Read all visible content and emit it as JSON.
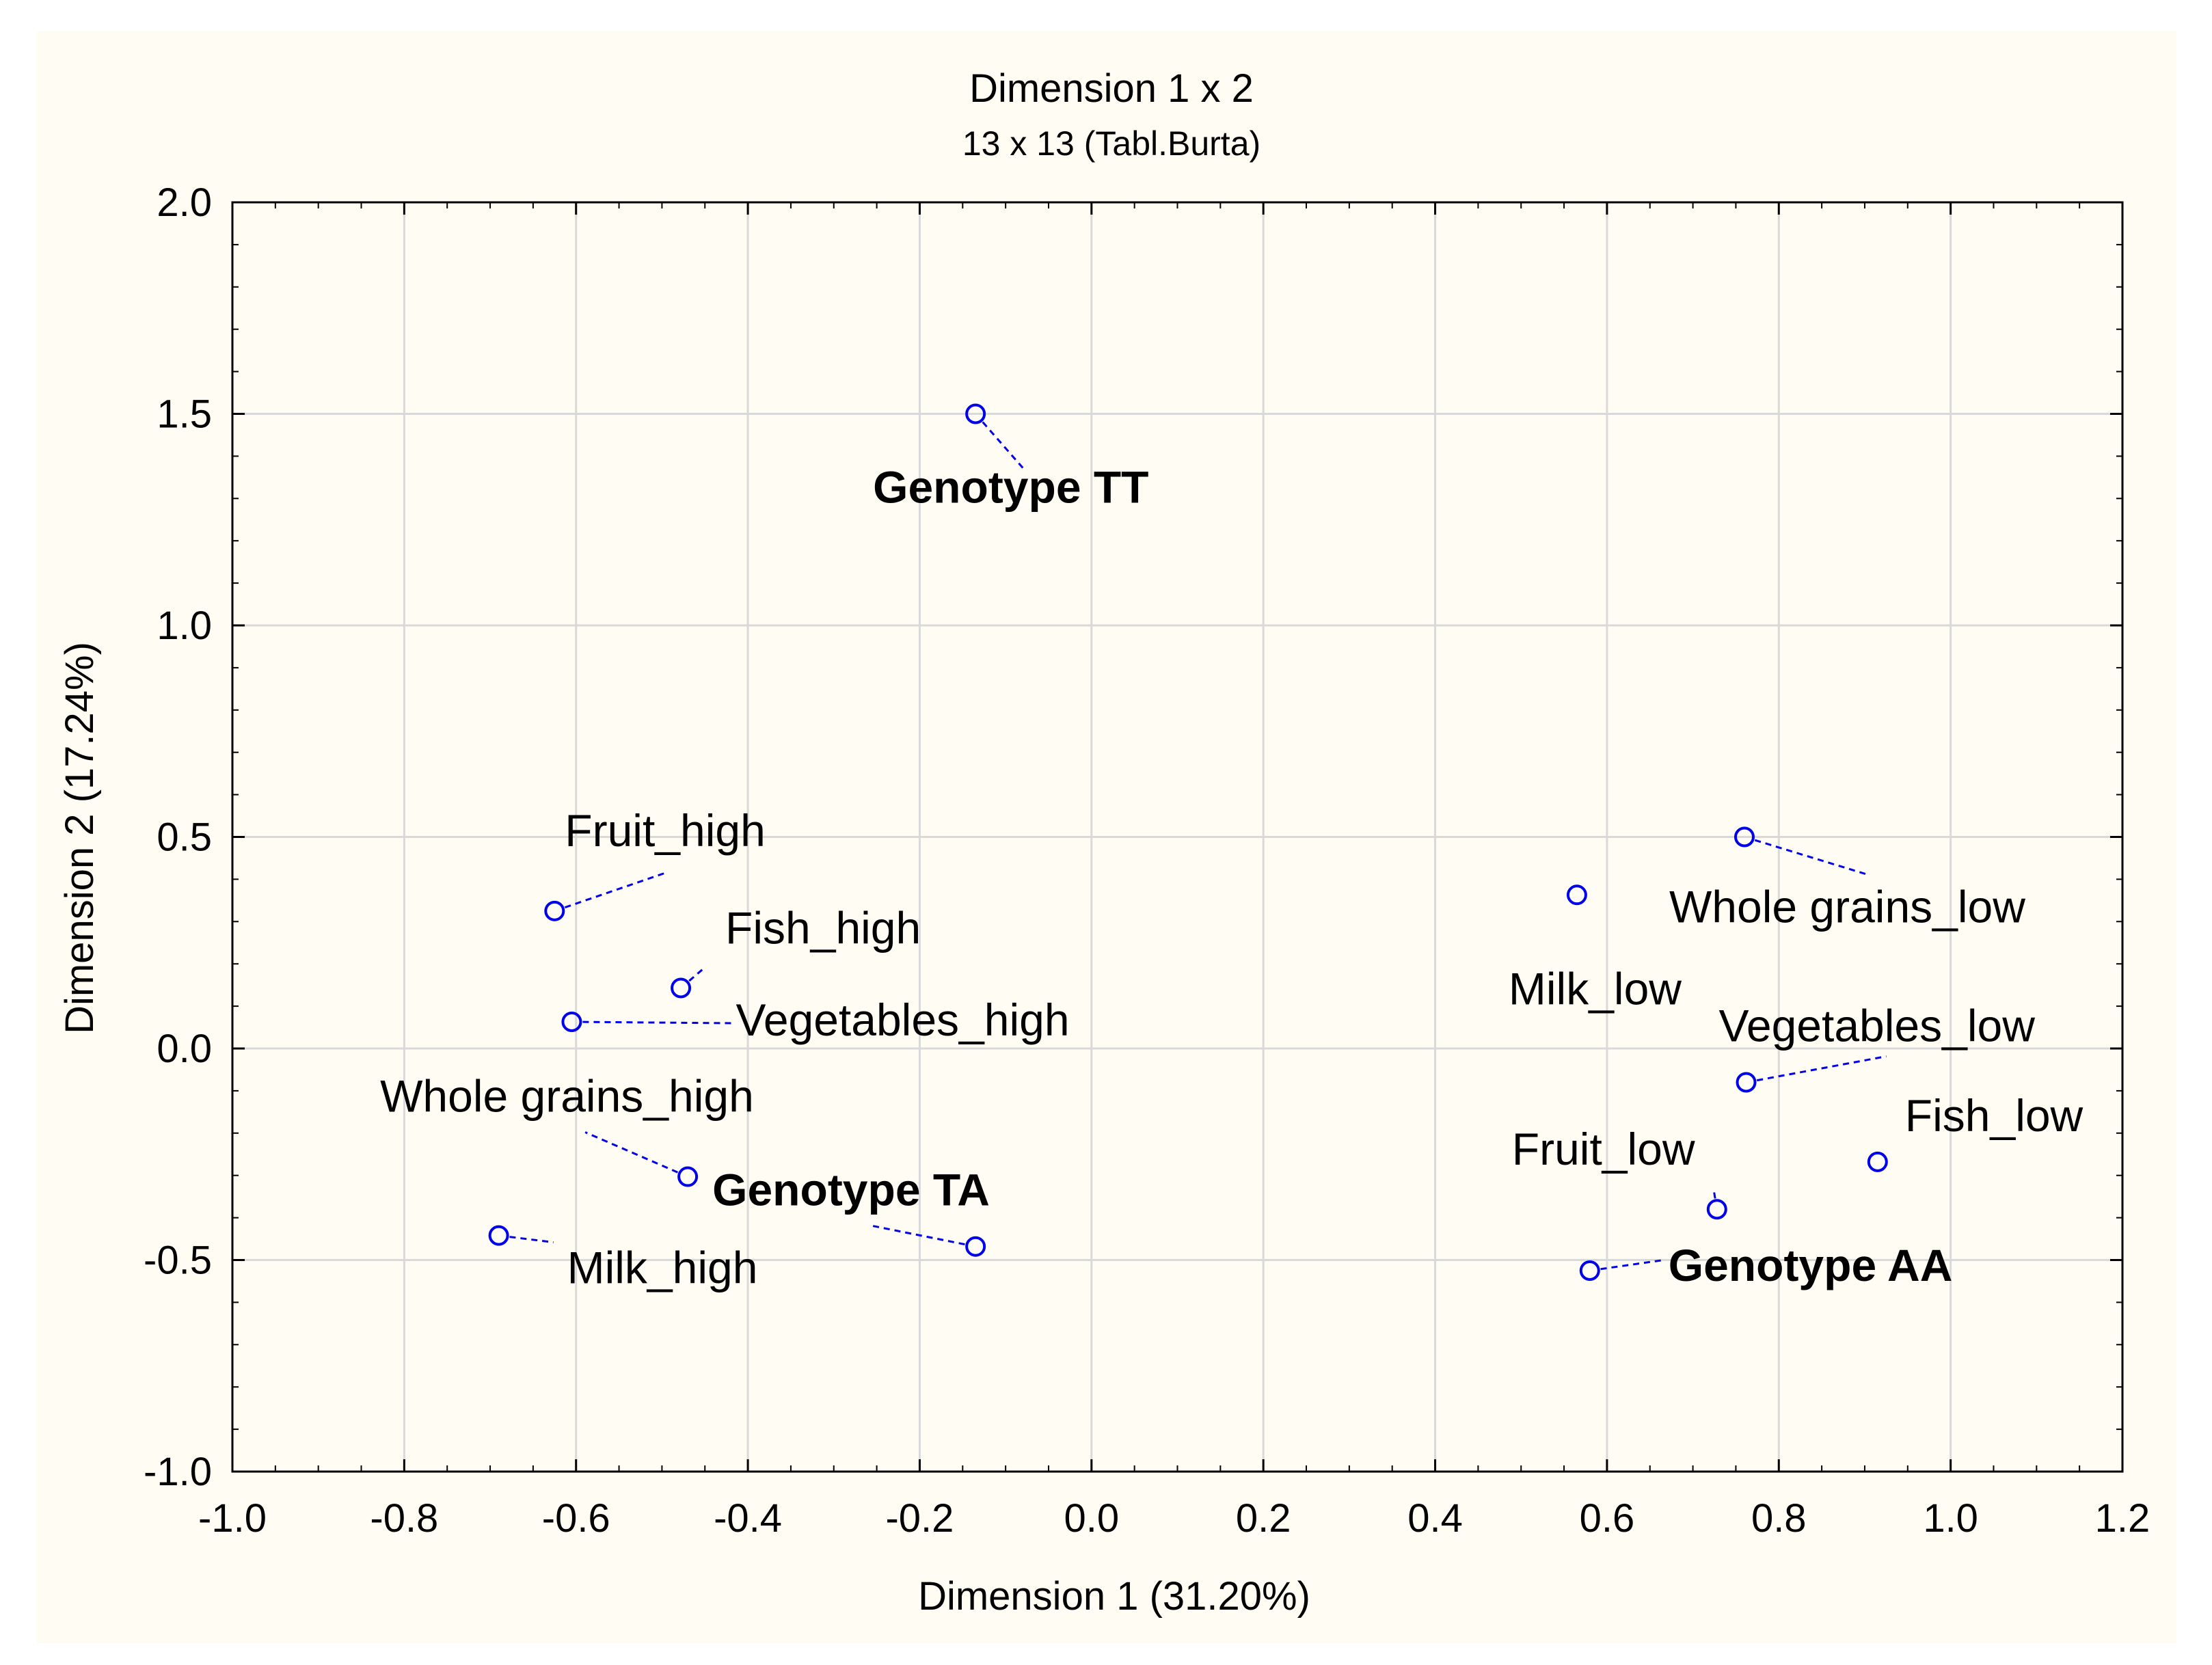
{
  "chart_data": {
    "type": "scatter",
    "title": "Dimension 1 x  2",
    "subtitle": "13 x 13 (Tabl.Burta)",
    "xlabel": "Dimension 1 (31.20%)",
    "ylabel": "Dimension 2 (17.24%)",
    "xlim": [
      -1.0,
      1.2
    ],
    "ylim": [
      -1.0,
      2.0
    ],
    "xticks": [
      -1.0,
      -0.8,
      -0.6,
      -0.4,
      -0.2,
      0.0,
      0.2,
      0.4,
      0.6,
      0.8,
      1.0,
      1.2
    ],
    "xtick_labels": [
      "-1.0",
      "-0.8",
      "-0.6",
      "-0.4",
      "-0.2",
      "0.0",
      "0.2",
      "0.4",
      "0.6",
      "0.8",
      "1.0",
      "1.2"
    ],
    "yticks": [
      -1.0,
      -0.5,
      0.0,
      0.5,
      1.0,
      1.5,
      2.0
    ],
    "ytick_labels": [
      "-1.0",
      "-0.5",
      "0.0",
      "0.5",
      "1.0",
      "1.5",
      "2.0"
    ],
    "grid": true,
    "marker_color": "#0000ee",
    "points": [
      {
        "label": "Genotype TT",
        "x": -0.135,
        "y": 1.5,
        "bold": true
      },
      {
        "label": "Fruit_high",
        "x": -0.625,
        "y": 0.325,
        "bold": false
      },
      {
        "label": "Fish_high",
        "x": -0.478,
        "y": 0.143,
        "bold": false
      },
      {
        "label": "Vegetables_high",
        "x": -0.605,
        "y": 0.063,
        "bold": false
      },
      {
        "label": "Whole grains_high",
        "x": -0.47,
        "y": -0.303,
        "bold": false
      },
      {
        "label": "Genotype TA",
        "x": -0.135,
        "y": -0.468,
        "bold": true
      },
      {
        "label": "Milk_high",
        "x": -0.69,
        "y": -0.442,
        "bold": false
      },
      {
        "label": "Whole grains_low",
        "x": 0.76,
        "y": 0.5,
        "bold": false
      },
      {
        "label": "Milk_low",
        "x": 0.565,
        "y": 0.363,
        "bold": false
      },
      {
        "label": "Vegetables_low",
        "x": 0.762,
        "y": -0.08,
        "bold": false
      },
      {
        "label": "Fish_low",
        "x": 0.915,
        "y": -0.268,
        "bold": false
      },
      {
        "label": "Fruit_low",
        "x": 0.728,
        "y": -0.38,
        "bold": false
      },
      {
        "label": "Genotype AA",
        "x": 0.58,
        "y": -0.525,
        "bold": true
      }
    ]
  }
}
